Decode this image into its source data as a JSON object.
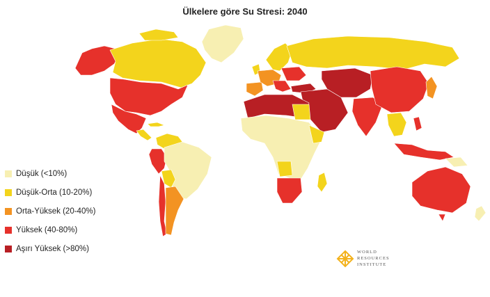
{
  "title": "Ülkelere göre Su Stresi: 2040",
  "colors": {
    "ocean": "#ffffff",
    "border": "#ffffff",
    "low": "#f7efb2",
    "low_medium": "#f3d41c",
    "medium_high": "#f39322",
    "high": "#e6312b",
    "extremely_high": "#b81f24"
  },
  "legend": [
    {
      "key": "low",
      "label": "Düşük (<10%)"
    },
    {
      "key": "low_medium",
      "label": "Düşük-Orta (10-20%)"
    },
    {
      "key": "medium_high",
      "label": "Orta-Yüksek (20-40%)"
    },
    {
      "key": "high",
      "label": "Yüksek (40-80%)"
    },
    {
      "key": "extremely_high",
      "label": "Aşırı Yüksek (>80%)"
    }
  ],
  "logo": {
    "lines": [
      "WORLD",
      "RESOURCES",
      "INSTITUTE"
    ],
    "icon": "wri-lattice-logo-icon"
  }
}
